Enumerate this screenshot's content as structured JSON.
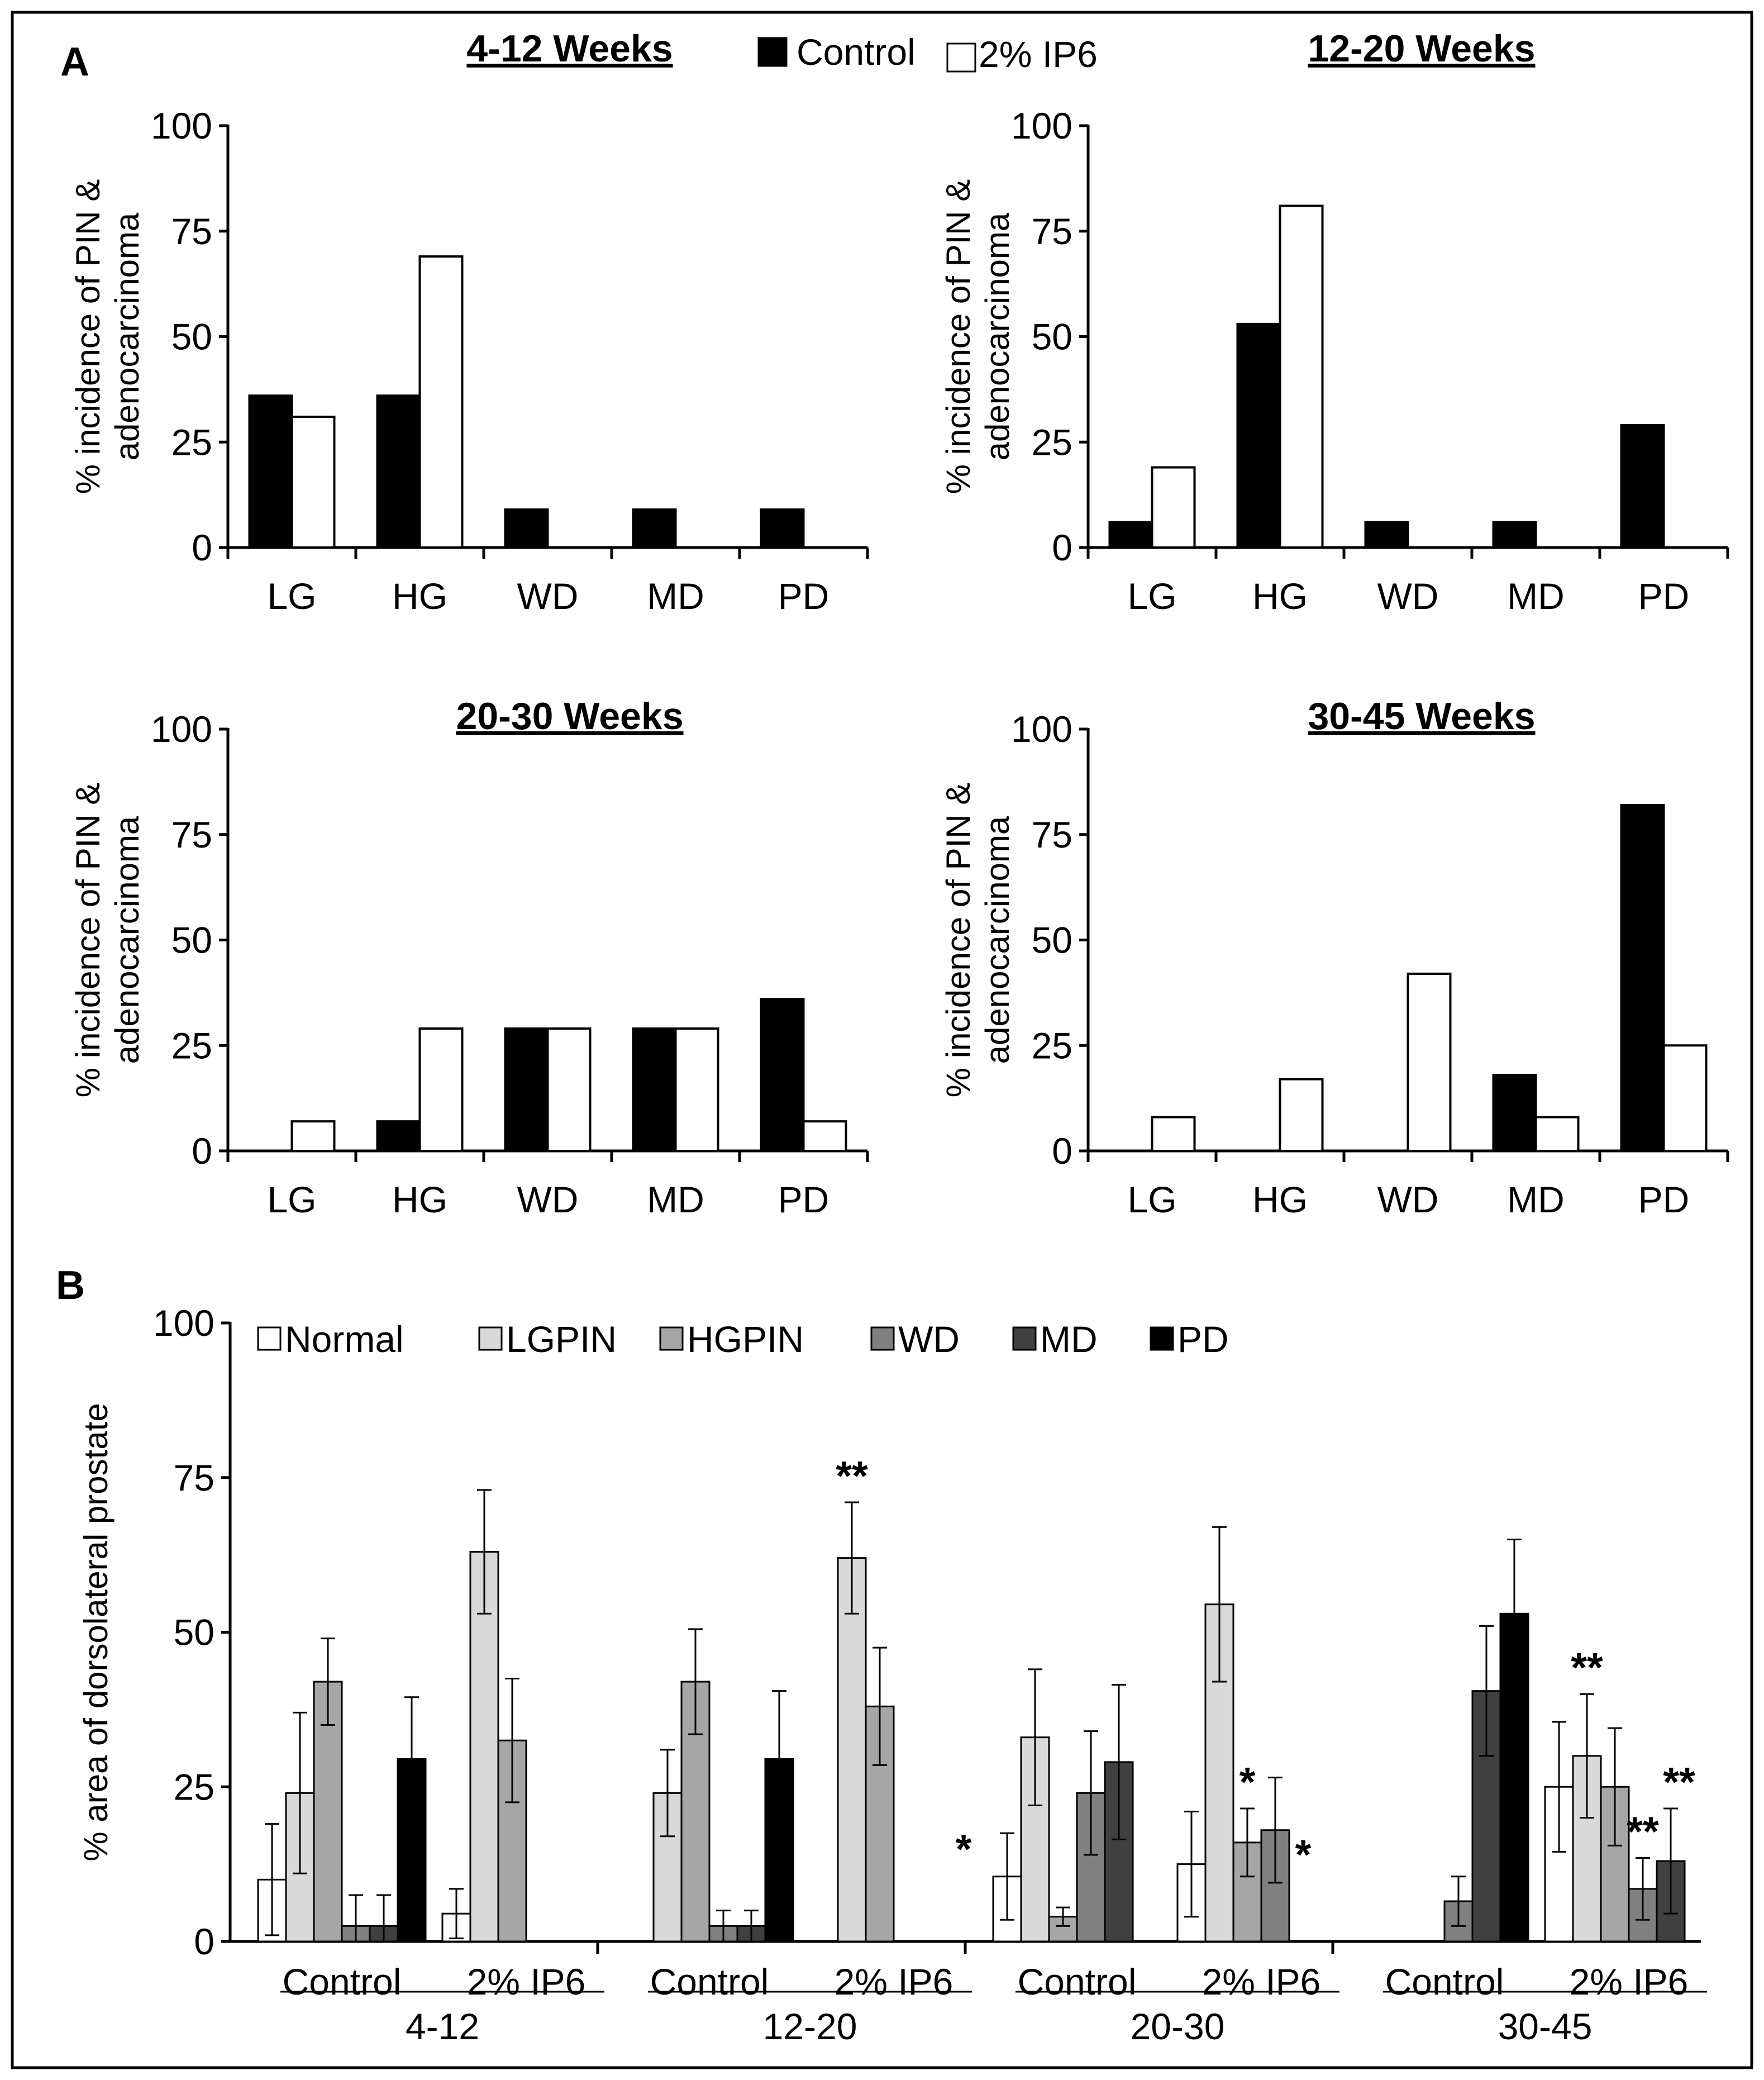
{
  "panel_labels": {
    "a": "A",
    "b": "B"
  },
  "colors": {
    "Control": "#000000",
    "IP6": "#ffffff",
    "Normal": "#ffffff",
    "LGPIN": "#d9d9d9",
    "HGPIN": "#a6a6a6",
    "WD": "#808080",
    "MD": "#404040",
    "PD": "#000000"
  },
  "chart_data": [
    {
      "type": "bar",
      "panel": "A",
      "title": "4-12 Weeks",
      "ylabel": [
        "% incidence of PIN &",
        "adenocarcinoma"
      ],
      "categories": [
        "LG",
        "HG",
        "WD",
        "MD",
        "PD"
      ],
      "ylim": [
        0,
        100
      ],
      "yticks": [
        "0",
        "25",
        "50",
        "75",
        "100"
      ],
      "legend": [
        "Control",
        "2% IP6"
      ],
      "series": [
        {
          "name": "Control",
          "values": [
            36,
            36,
            9,
            9,
            9
          ]
        },
        {
          "name": "2% IP6",
          "values": [
            31,
            69,
            0,
            0,
            0
          ]
        }
      ]
    },
    {
      "type": "bar",
      "panel": "A",
      "title": "12-20 Weeks",
      "ylabel": [
        "% incidence of PIN &",
        "adenocarcinoma"
      ],
      "categories": [
        "LG",
        "HG",
        "WD",
        "MD",
        "PD"
      ],
      "ylim": [
        0,
        100
      ],
      "yticks": [
        "0",
        "25",
        "50",
        "75",
        "100"
      ],
      "series": [
        {
          "name": "Control",
          "values": [
            6,
            53,
            6,
            6,
            29
          ]
        },
        {
          "name": "2% IP6",
          "values": [
            19,
            81,
            0,
            0,
            0
          ]
        }
      ]
    },
    {
      "type": "bar",
      "panel": "A",
      "title": "20-30 Weeks",
      "ylabel": [
        "% incidence of PIN &",
        "adenocarcinoma"
      ],
      "categories": [
        "LG",
        "HG",
        "WD",
        "MD",
        "PD"
      ],
      "ylim": [
        0,
        100
      ],
      "yticks": [
        "0",
        "25",
        "50",
        "75",
        "100"
      ],
      "series": [
        {
          "name": "Control",
          "values": [
            0,
            7,
            29,
            29,
            36
          ]
        },
        {
          "name": "2% IP6",
          "values": [
            7,
            29,
            29,
            29,
            7
          ]
        }
      ]
    },
    {
      "type": "bar",
      "panel": "A",
      "title": "30-45 Weeks",
      "ylabel": [
        "% incidence of PIN &",
        "adenocarcinoma"
      ],
      "categories": [
        "LG",
        "HG",
        "WD",
        "MD",
        "PD"
      ],
      "ylim": [
        0,
        100
      ],
      "yticks": [
        "0",
        "25",
        "50",
        "75",
        "100"
      ],
      "series": [
        {
          "name": "Control",
          "values": [
            0,
            0,
            0,
            18,
            82
          ]
        },
        {
          "name": "2% IP6",
          "values": [
            8,
            17,
            42,
            8,
            25
          ]
        }
      ]
    },
    {
      "type": "bar",
      "panel": "B",
      "ylabel": "% area of dorsolateral prostate",
      "ylim": [
        0,
        100
      ],
      "yticks": [
        "0",
        "25",
        "50",
        "75",
        "100"
      ],
      "legend": [
        "Normal",
        "LGPIN",
        "HGPIN",
        "WD",
        "MD",
        "PD"
      ],
      "groups": [
        {
          "period": "4-12",
          "bars": [
            {
              "label": "Control",
              "values": [
                10,
                24,
                42,
                2.5,
                2.5,
                29.5
              ],
              "errors": [
                9,
                13,
                7,
                5,
                5,
                10
              ],
              "stars": [
                "",
                "",
                "",
                "",
                "",
                ""
              ]
            },
            {
              "label": "2% IP6",
              "values": [
                4.5,
                63,
                32.5,
                0,
                0,
                0
              ],
              "errors": [
                4,
                10,
                10,
                0,
                0,
                0
              ],
              "stars": [
                "",
                "",
                "",
                "",
                "",
                ""
              ]
            }
          ]
        },
        {
          "period": "12-20",
          "bars": [
            {
              "label": "Control",
              "values": [
                0,
                24,
                42,
                2.5,
                2.5,
                29.5
              ],
              "errors": [
                0,
                7,
                8.5,
                2.5,
                2.5,
                11
              ],
              "stars": [
                "",
                "",
                "",
                "",
                "",
                ""
              ]
            },
            {
              "label": "2% IP6",
              "values": [
                0,
                62,
                38,
                0,
                0,
                0
              ],
              "errors": [
                0,
                9,
                9.5,
                0,
                0,
                0
              ],
              "stars": [
                "",
                "**",
                "",
                "",
                "",
                "*"
              ]
            }
          ]
        },
        {
          "period": "20-30",
          "bars": [
            {
              "label": "Control",
              "values": [
                10.5,
                33,
                4,
                24,
                29,
                0
              ],
              "errors": [
                7,
                11,
                1.5,
                10,
                12.5,
                0
              ],
              "stars": [
                "",
                "",
                "",
                "",
                "",
                ""
              ]
            },
            {
              "label": "2% IP6",
              "values": [
                12.5,
                54.5,
                16,
                18,
                0,
                0
              ],
              "errors": [
                8.5,
                12.5,
                5.5,
                8.5,
                0,
                0
              ],
              "stars": [
                "",
                "",
                "*",
                "",
                "*",
                ""
              ]
            }
          ]
        },
        {
          "period": "30-45",
          "bars": [
            {
              "label": "Control",
              "values": [
                0,
                0,
                0,
                6.5,
                40.5,
                53
              ],
              "errors": [
                0,
                0,
                0,
                4,
                10.5,
                12
              ],
              "stars": [
                "",
                "",
                "",
                "",
                "",
                ""
              ]
            },
            {
              "label": "2% IP6",
              "values": [
                25,
                30,
                25,
                8.5,
                13,
                0
              ],
              "errors": [
                10.5,
                10,
                9.5,
                5,
                8.5,
                0
              ],
              "stars": [
                "",
                "**",
                "",
                "**",
                "**",
                ""
              ]
            }
          ]
        }
      ]
    }
  ]
}
